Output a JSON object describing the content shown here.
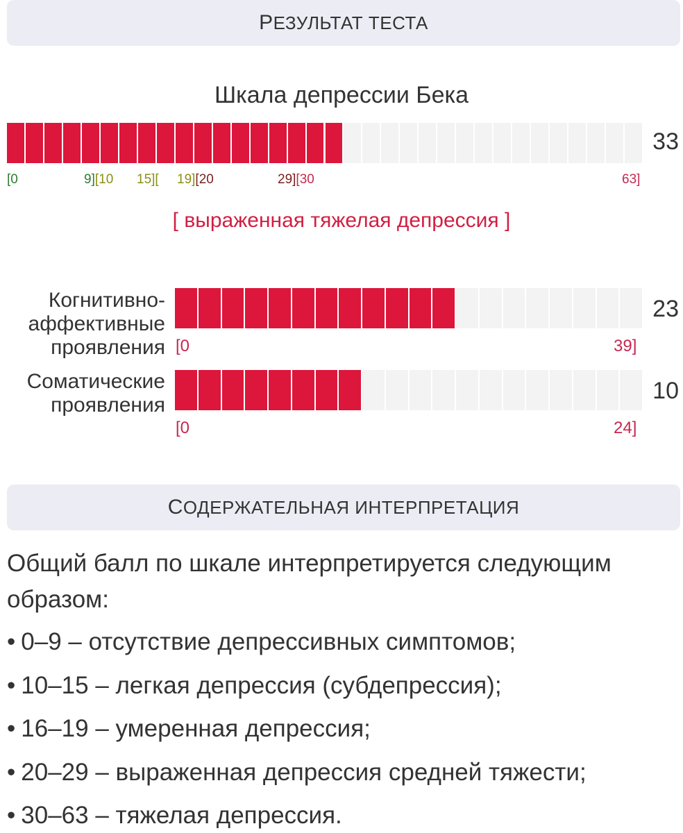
{
  "header1": {
    "first_letter": "Р",
    "rest": "ЕЗУЛЬТАТ ТЕСТА"
  },
  "scale_title": "Шкала депрессии Бека",
  "main_scale": {
    "score": "33",
    "value": 33,
    "max": 63,
    "ticks": [
      "[0",
      "9][10",
      "15][",
      "19][20",
      "29][30",
      "63]"
    ],
    "tick_colors": {
      "green": "#2e7d32",
      "olive": "#8a8f12",
      "brown": "#7a1f1f",
      "red": "#c62850"
    },
    "verdict": "[ выраженная тяжелая депрессия ]"
  },
  "subscales": [
    {
      "label": "Когнитивно-аффективные проявления",
      "score": "23",
      "value": 23,
      "max": 39,
      "min_tick": "[0",
      "max_tick": "39]"
    },
    {
      "label": "Соматические проявления",
      "score": "10",
      "value": 10,
      "max": 24,
      "min_tick": "[0",
      "max_tick": "24]"
    }
  ],
  "header2": {
    "first_letter": "С",
    "rest": "ОДЕРЖАТЕЛЬНАЯ ИНТЕРПРЕТАЦИЯ"
  },
  "interpretation": {
    "intro": "Общий балл по шкале интерпретируется следующим образом:",
    "items": [
      "0–9 – отсутствие депрессивных симптомов;",
      "10–15 – легкая депрессия (субдепрессия);",
      "16–19 – умеренная депрессия;",
      "20–29 – выраженная депрессия средней тяжести;",
      "30–63 – тяжелая депрессия."
    ]
  },
  "colors": {
    "bar_fill": "#dd163b",
    "bar_empty": "#f3f3f3",
    "header_bg": "#ececf4",
    "verdict": "#d11f42"
  }
}
